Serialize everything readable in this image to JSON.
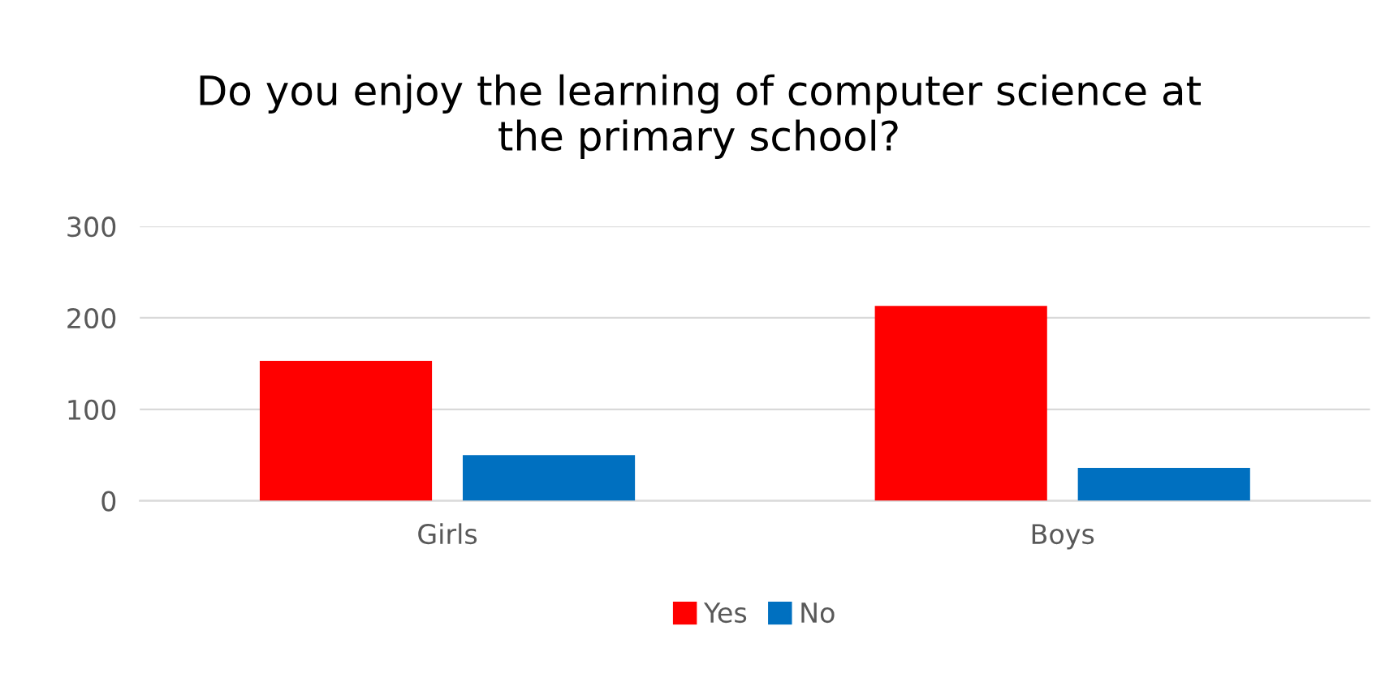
{
  "chart_data": {
    "type": "bar",
    "title": "Do you enjoy the learning of computer science at\nthe primary school?",
    "categories": [
      "Girls",
      "Boys"
    ],
    "series": [
      {
        "name": "Yes",
        "color": "#ff0000",
        "values": [
          153,
          213
        ]
      },
      {
        "name": "No",
        "color": "#0070c0",
        "values": [
          50,
          36
        ]
      }
    ],
    "ylim": [
      0,
      300
    ],
    "yticks": [
      0,
      100,
      200,
      300
    ],
    "grid": "y",
    "legend": "bottom"
  }
}
